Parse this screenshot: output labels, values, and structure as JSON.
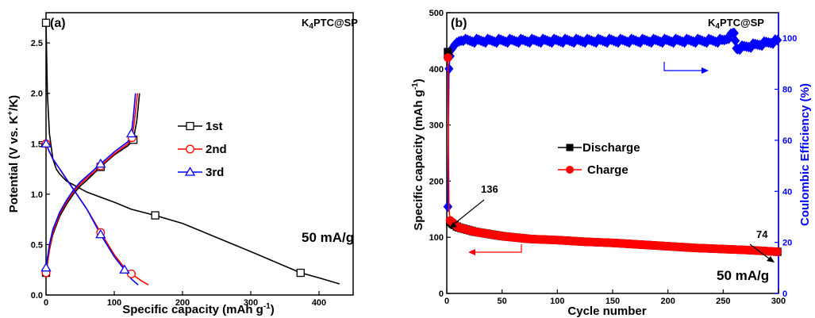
{
  "chart_data": [
    {
      "type": "line",
      "panel": "(a)",
      "sample_label": "K4PTC@SP",
      "xlabel": "Specific capacity (mAh g-1)",
      "ylabel": "Potential (V vs. K+/K)",
      "xlim": [
        0,
        450
      ],
      "ylim": [
        0,
        2.8
      ],
      "x_ticks": [
        "0",
        "100",
        "200",
        "300",
        "400"
      ],
      "y_ticks": [
        "0.0",
        "0.5",
        "1.0",
        "1.5",
        "2.0",
        "2.5"
      ],
      "legend_position": "center",
      "annotation": "50 mA/g",
      "colors": {
        "1st": "#000000",
        "2nd": "#ff0000",
        "3rd": "#0000ff"
      },
      "series": [
        {
          "name": "1st",
          "part": "discharge",
          "marker": "square",
          "x": [
            0,
            2,
            5,
            10,
            15,
            20,
            30,
            60,
            100,
            125,
            160,
            200,
            250,
            300,
            373,
            400,
            430
          ],
          "y": [
            2.7,
            2.0,
            1.6,
            1.35,
            1.25,
            1.2,
            1.13,
            1.02,
            0.92,
            0.85,
            0.79,
            0.71,
            0.57,
            0.43,
            0.22,
            0.17,
            0.11
          ]
        },
        {
          "name": "1st",
          "part": "charge",
          "marker": "square",
          "x": [
            0,
            5,
            10,
            20,
            30,
            40,
            50,
            60,
            80,
            100,
            120,
            128,
            133,
            137
          ],
          "y": [
            0.22,
            0.45,
            0.6,
            0.78,
            0.9,
            1.0,
            1.08,
            1.14,
            1.27,
            1.39,
            1.48,
            1.54,
            1.73,
            2.0
          ]
        },
        {
          "name": "2nd",
          "part": "discharge",
          "marker": "circle",
          "x": [
            0,
            5,
            10,
            20,
            30,
            40,
            60,
            80,
            100,
            115,
            125,
            140,
            150
          ],
          "y": [
            1.5,
            1.42,
            1.35,
            1.25,
            1.15,
            1.05,
            0.85,
            0.62,
            0.4,
            0.27,
            0.21,
            0.14,
            0.1
          ]
        },
        {
          "name": "2nd",
          "part": "charge",
          "marker": "circle",
          "x": [
            0,
            5,
            10,
            20,
            30,
            40,
            50,
            60,
            80,
            100,
            120,
            126,
            130,
            134
          ],
          "y": [
            0.22,
            0.45,
            0.62,
            0.8,
            0.92,
            1.02,
            1.1,
            1.16,
            1.28,
            1.4,
            1.5,
            1.56,
            1.75,
            2.0
          ]
        },
        {
          "name": "3rd",
          "part": "discharge",
          "marker": "triangle",
          "x": [
            0,
            5,
            10,
            20,
            30,
            40,
            60,
            80,
            100,
            115,
            125,
            135
          ],
          "y": [
            1.5,
            1.42,
            1.35,
            1.25,
            1.15,
            1.05,
            0.85,
            0.6,
            0.38,
            0.25,
            0.16,
            0.1
          ]
        },
        {
          "name": "3rd",
          "part": "charge",
          "marker": "triangle",
          "x": [
            0,
            5,
            10,
            20,
            30,
            40,
            50,
            60,
            80,
            100,
            120,
            125,
            128,
            131
          ],
          "y": [
            0.27,
            0.5,
            0.65,
            0.82,
            0.94,
            1.04,
            1.12,
            1.18,
            1.3,
            1.42,
            1.52,
            1.6,
            1.77,
            2.0
          ]
        }
      ]
    },
    {
      "type": "scatter",
      "panel": "(b)",
      "sample_label": "K4PTC@SP",
      "xlabel": "Cycle number",
      "ylabel": "Specific capacity (mAh g-1)",
      "y2label": "Coulombic Efficiency (%)",
      "xlim": [
        0,
        300
      ],
      "ylim": [
        0,
        500
      ],
      "y2lim": [
        0,
        110
      ],
      "x_ticks": [
        "0",
        "50",
        "100",
        "150",
        "200",
        "250",
        "300"
      ],
      "y_ticks": [
        "0",
        "100",
        "200",
        "300",
        "400",
        "500"
      ],
      "y2_ticks": [
        "0",
        "20",
        "40",
        "60",
        "80",
        "100"
      ],
      "legend_position": "center",
      "annotation": "50 mA/g",
      "callouts": [
        "136",
        "74"
      ],
      "colors": {
        "Discharge": "#000000",
        "Charge": "#ff0000",
        "Coulombic Efficiency": "#0000ff"
      },
      "series": [
        {
          "name": "Discharge",
          "axis": "left",
          "marker": "square",
          "x": [
            1,
            2,
            3,
            10,
            25,
            50,
            75,
            100,
            125,
            150,
            175,
            200,
            225,
            250,
            275,
            300
          ],
          "y": [
            430,
            136,
            127,
            118,
            110,
            102,
            97,
            95,
            92,
            90,
            87,
            84,
            81,
            79,
            77,
            74
          ]
        },
        {
          "name": "Charge",
          "axis": "left",
          "marker": "circle",
          "x": [
            1,
            2,
            3,
            10,
            25,
            50,
            75,
            100,
            125,
            150,
            175,
            200,
            225,
            250,
            275,
            300
          ],
          "y": [
            420,
            150,
            130,
            118,
            110,
            102,
            97,
            95,
            92,
            90,
            87,
            84,
            81,
            79,
            77,
            74
          ]
        },
        {
          "name": "",
          "axis": "right",
          "marker": "diamond",
          "x": [
            1,
            2,
            3,
            5,
            8,
            12,
            20,
            50,
            100,
            150,
            200,
            250,
            260,
            262,
            300
          ],
          "y": [
            34,
            88,
            93,
            96,
            98,
            99,
            99,
            99,
            99,
            99,
            99,
            99,
            102,
            96,
            99
          ]
        }
      ]
    }
  ]
}
